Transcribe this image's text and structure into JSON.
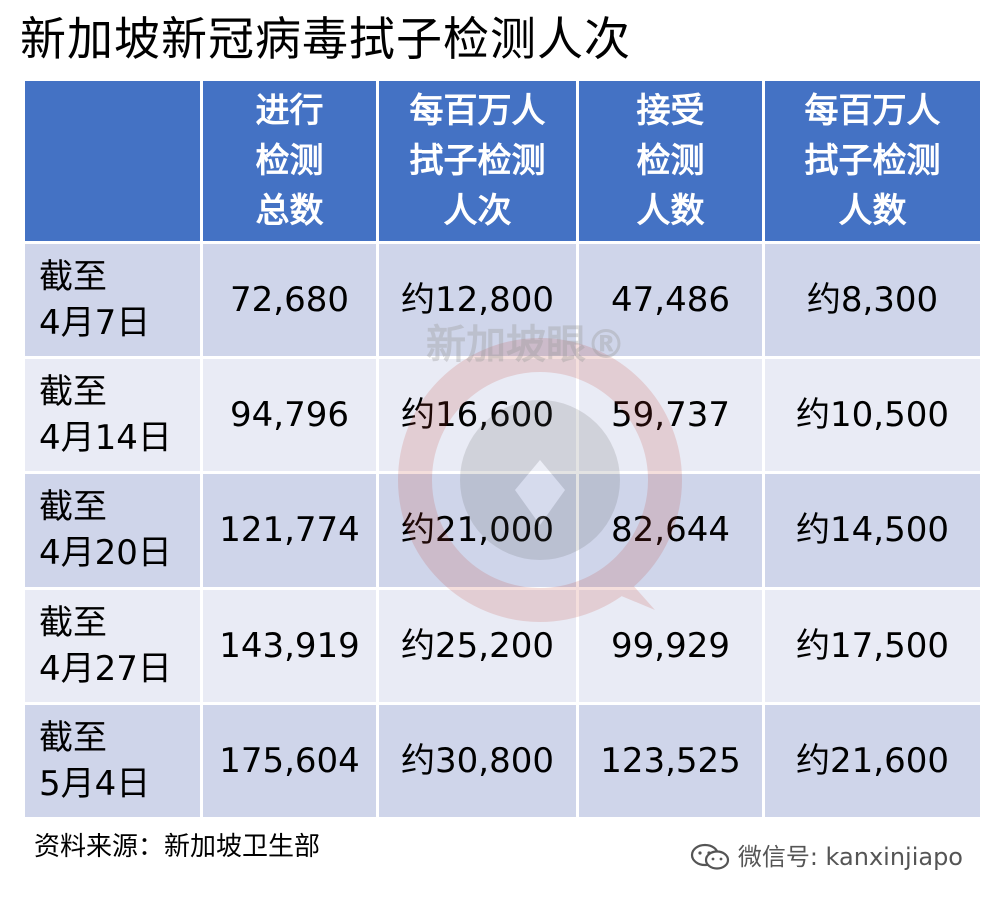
{
  "title": "新加坡新冠病毒拭子检测人次",
  "header_color": "#4472c4",
  "row_colors": [
    "#cfd5ea",
    "#e9ebf5"
  ],
  "columns": [
    {
      "lines": [
        "",
        "",
        ""
      ]
    },
    {
      "lines": [
        "进行",
        "检测",
        "总数"
      ]
    },
    {
      "lines": [
        "每百万人",
        "拭子检测",
        "人次"
      ]
    },
    {
      "lines": [
        "接受",
        "检测",
        "人数"
      ]
    },
    {
      "lines": [
        "每百万人",
        "拭子检测",
        "人数"
      ]
    }
  ],
  "rows": [
    {
      "date": [
        "截至",
        "4月7日"
      ],
      "cells": [
        "72,680",
        "约12,800",
        "47,486",
        "约8,300"
      ]
    },
    {
      "date": [
        "截至",
        "4月14日"
      ],
      "cells": [
        "94,796",
        "约16,600",
        "59,737",
        "约10,500"
      ]
    },
    {
      "date": [
        "截至",
        "4月20日"
      ],
      "cells": [
        "121,774",
        "约21,000",
        "82,644",
        "约14,500"
      ]
    },
    {
      "date": [
        "截至",
        "4月27日"
      ],
      "cells": [
        "143,919",
        "约25,200",
        "99,929",
        "约17,500"
      ]
    },
    {
      "date": [
        "截至",
        "5月4日"
      ],
      "cells": [
        "175,604",
        "约30,800",
        "123,525",
        "约21,600"
      ]
    }
  ],
  "source": "资料来源：新加坡卫生部",
  "watermark_text": "新加坡眼",
  "watermark_mark": "®",
  "wechat_label": "微信号: kanxinjiapo",
  "chart_data": {
    "type": "table",
    "title": "新加坡新冠病毒拭子检测人次",
    "columns": [
      "",
      "进行检测总数",
      "每百万人拭子检测人次",
      "接受检测人数",
      "每百万人拭子检测人数"
    ],
    "categories": [
      "截至4月7日",
      "截至4月14日",
      "截至4月20日",
      "截至4月27日",
      "截至5月4日"
    ],
    "series": [
      {
        "name": "进行检测总数",
        "values": [
          72680,
          94796,
          121774,
          143919,
          175604
        ]
      },
      {
        "name": "每百万人拭子检测人次",
        "values": [
          12800,
          16600,
          21000,
          25200,
          30800
        ]
      },
      {
        "name": "接受检测人数",
        "values": [
          47486,
          59737,
          82644,
          99929,
          123525
        ]
      },
      {
        "name": "每百万人拭子检测人数",
        "values": [
          8300,
          10500,
          14500,
          17500,
          21600
        ]
      }
    ]
  }
}
